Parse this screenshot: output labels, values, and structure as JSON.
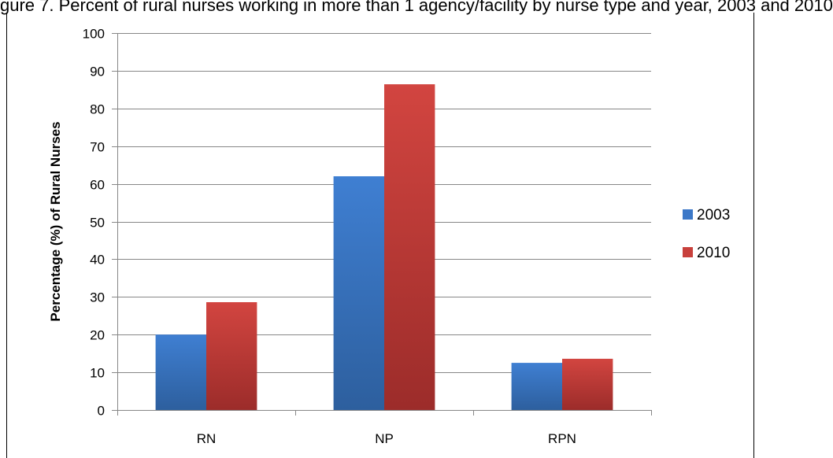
{
  "page": {
    "title": "gure 7. Percent of rural nurses working in more than 1 agency/facility by nurse type and year, 2003 and 2010"
  },
  "chart_data": {
    "type": "bar",
    "title": "gure 7. Percent of rural nurses working in more than 1 agency/facility by nurse type and year, 2003 and 2010",
    "xlabel": "",
    "ylabel": "Percentage (%) of Rural Nurses",
    "categories": [
      "RN",
      "NP",
      "RPN"
    ],
    "series": [
      {
        "name": "2003",
        "values": [
          20,
          62,
          12.5
        ],
        "color": "#3c78c8"
      },
      {
        "name": "2010",
        "values": [
          28.6,
          86.4,
          13.6
        ],
        "color": "#c8403c"
      }
    ],
    "ylim": [
      0,
      100
    ],
    "yticks": [
      0,
      10,
      20,
      30,
      40,
      50,
      60,
      70,
      80,
      90,
      100
    ],
    "grid": true,
    "legend_position": "right"
  }
}
